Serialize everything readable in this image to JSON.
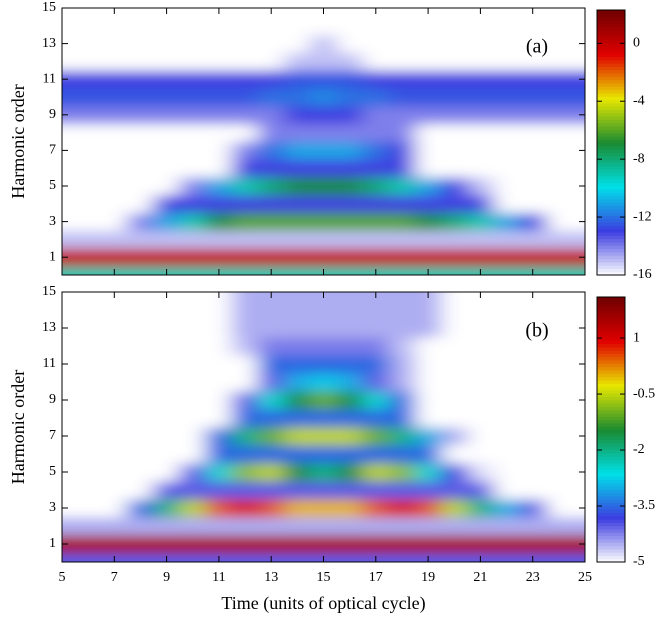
{
  "chart_data": [
    {
      "type": "heatmap",
      "annotation": "(a)",
      "y_label": "Harmonic order",
      "x": [
        5,
        6,
        7,
        8,
        9,
        10,
        11,
        12,
        13,
        14,
        15,
        16,
        17,
        18,
        19,
        20,
        21,
        22,
        23,
        24,
        25
      ],
      "y": [
        0,
        1,
        2,
        3,
        4,
        5,
        6,
        7,
        8,
        9,
        10,
        11,
        12,
        13,
        14,
        15
      ],
      "z": [
        [
          -9,
          -9,
          -9,
          -9,
          -9,
          -9,
          -9,
          -9,
          -9,
          -9,
          -9,
          -9,
          -9,
          -9,
          -9,
          -9,
          -9,
          -9,
          -9,
          -9,
          -9
        ],
        [
          0,
          0,
          0,
          0,
          0,
          0,
          0,
          0,
          0,
          0,
          0,
          0,
          0,
          0,
          0,
          0,
          0,
          0,
          0,
          0,
          0
        ],
        [
          -15,
          -15,
          -15,
          -15,
          -15,
          -15,
          -15,
          -15,
          -15,
          -15,
          -15,
          -15,
          -15,
          -15,
          -15,
          -15,
          -15,
          -15,
          -15,
          -15,
          -15
        ],
        [
          -16,
          -16,
          -16,
          -14,
          -11,
          -9,
          -7,
          -6,
          -6,
          -6,
          -6,
          -6,
          -6,
          -6,
          -7,
          -8,
          -9,
          -11,
          -13,
          -16,
          -16
        ],
        [
          -16,
          -16,
          -16,
          -16,
          -13,
          -13,
          -13,
          -13,
          -13,
          -13,
          -13,
          -13,
          -13,
          -13,
          -13,
          -13,
          -13,
          -16,
          -16,
          -16,
          -16
        ],
        [
          -16,
          -16,
          -16,
          -16,
          -16,
          -14,
          -11,
          -9,
          -8,
          -7,
          -7,
          -7,
          -8,
          -9,
          -11,
          -13,
          -15,
          -16,
          -16,
          -16,
          -16
        ],
        [
          -16,
          -16,
          -16,
          -16,
          -16,
          -16,
          -16,
          -13,
          -13,
          -13,
          -13,
          -13,
          -13,
          -13,
          -16,
          -16,
          -16,
          -16,
          -16,
          -16,
          -16
        ],
        [
          -16,
          -16,
          -16,
          -16,
          -16,
          -16,
          -16,
          -14,
          -12,
          -11,
          -11,
          -11,
          -12,
          -13,
          -16,
          -16,
          -16,
          -16,
          -16,
          -16,
          -16
        ],
        [
          -16,
          -16,
          -16,
          -16,
          -16,
          -16,
          -16,
          -16,
          -14,
          -14,
          -14,
          -14,
          -14,
          -14,
          -16,
          -16,
          -16,
          -16,
          -16,
          -16,
          -16
        ],
        [
          -14,
          -14,
          -14,
          -14,
          -14,
          -14,
          -14,
          -14,
          -14,
          -13,
          -13,
          -13,
          -14,
          -14,
          -14,
          -14,
          -14,
          -14,
          -14,
          -14,
          -14
        ],
        [
          -12.5,
          -12.5,
          -12.5,
          -12.5,
          -12.5,
          -12.5,
          -12.5,
          -12.5,
          -12,
          -12,
          -11.5,
          -12,
          -12,
          -12.5,
          -12.5,
          -12.5,
          -12.5,
          -12.5,
          -12.5,
          -12.5,
          -12.5
        ],
        [
          -13,
          -13,
          -13,
          -13,
          -13,
          -13,
          -13,
          -13,
          -13,
          -12.5,
          -12.5,
          -12.5,
          -13,
          -13,
          -13,
          -13,
          -13,
          -13,
          -13,
          -13,
          -13
        ],
        [
          -16,
          -16,
          -16,
          -16,
          -16,
          -16,
          -16,
          -16,
          -16,
          -15,
          -15,
          -15,
          -16,
          -16,
          -16,
          -16,
          -16,
          -16,
          -16,
          -16,
          -16
        ],
        [
          -16,
          -16,
          -16,
          -16,
          -16,
          -16,
          -16,
          -16,
          -16,
          -16,
          -15,
          -16,
          -16,
          -16,
          -16,
          -16,
          -16,
          -16,
          -16,
          -16,
          -16
        ],
        [
          -16,
          -16,
          -16,
          -16,
          -16,
          -16,
          -16,
          -16,
          -16,
          -16,
          -16,
          -16,
          -16,
          -16,
          -16,
          -16,
          -16,
          -16,
          -16,
          -16,
          -16
        ],
        [
          -16,
          -16,
          -16,
          -16,
          -16,
          -16,
          -16,
          -16,
          -16,
          -16,
          -16,
          -16,
          -16,
          -16,
          -16,
          -16,
          -16,
          -16,
          -16,
          -16,
          -16
        ]
      ],
      "xlim": [
        5,
        25
      ],
      "ylim": [
        0,
        15
      ],
      "yticks": [
        1,
        3,
        5,
        7,
        9,
        11,
        13,
        15
      ],
      "zlim": [
        -16,
        2.3
      ],
      "zticks": [
        0,
        -4,
        -8,
        -12,
        -16
      ],
      "colorscale": [
        "#ffffff",
        "#3c3ce0",
        "#00e0e8",
        "#1a8a30",
        "#e8e800",
        "#e00000",
        "#700000"
      ]
    },
    {
      "type": "heatmap",
      "annotation": "(b)",
      "y_label": "Harmonic order",
      "x_label": "Time (units of optical cycle)",
      "x": [
        5,
        6,
        7,
        8,
        9,
        10,
        11,
        12,
        13,
        14,
        15,
        16,
        17,
        18,
        19,
        20,
        21,
        22,
        23,
        24,
        25
      ],
      "y": [
        0,
        1,
        2,
        3,
        4,
        5,
        6,
        7,
        8,
        9,
        10,
        11,
        12,
        13,
        14,
        15
      ],
      "z": [
        [
          -4,
          -4,
          -4,
          -4,
          -4,
          -4,
          -4,
          -4,
          -4,
          -4,
          -4,
          -4,
          -4,
          -4,
          -4,
          -4,
          -4,
          -4,
          -4,
          -4,
          -4
        ],
        [
          1.5,
          1.5,
          1.5,
          1.5,
          1.5,
          1.5,
          1.5,
          1.5,
          1.5,
          1.5,
          1.5,
          1.5,
          1.5,
          1.5,
          1.5,
          1.5,
          1.5,
          1.5,
          1.5,
          1.5,
          1.5
        ],
        [
          -4.5,
          -4.5,
          -4.5,
          -4.5,
          -4.5,
          -4.5,
          -4.5,
          -4.5,
          -4.5,
          -4.5,
          -4.5,
          -4.5,
          -4.5,
          -4.5,
          -4.5,
          -4.5,
          -4.5,
          -4.5,
          -4.5,
          -4.5,
          -4.5
        ],
        [
          -5,
          -5,
          -5,
          -3.5,
          -2,
          -0.5,
          0.5,
          1,
          0.5,
          0,
          0,
          0,
          0.5,
          1,
          0.5,
          -0.5,
          -2,
          -3,
          -4,
          -5,
          -5
        ],
        [
          -5,
          -5,
          -5,
          -5,
          -4,
          -4,
          -4,
          -4,
          -4,
          -4,
          -4,
          -4,
          -4,
          -4,
          -4,
          -4,
          -4,
          -5,
          -5,
          -5,
          -5
        ],
        [
          -5,
          -5,
          -5,
          -5,
          -5,
          -4,
          -2.5,
          -0.8,
          -0.5,
          -1.5,
          -2,
          -1.5,
          -0.5,
          -0.8,
          -2.5,
          -3.8,
          -4.8,
          -5,
          -5,
          -5,
          -5
        ],
        [
          -5,
          -5,
          -5,
          -5,
          -5,
          -5,
          -3.5,
          -3.5,
          -3.5,
          -3.5,
          -3.5,
          -3.5,
          -3.5,
          -3.5,
          -3.5,
          -5,
          -5,
          -5,
          -5,
          -5,
          -5
        ],
        [
          -5,
          -5,
          -5,
          -5,
          -5,
          -5,
          -3.5,
          -2,
          -1,
          -0.5,
          -0.5,
          -0.5,
          -1,
          -2,
          -3,
          -4.5,
          -5,
          -5,
          -5,
          -5,
          -5
        ],
        [
          -5,
          -5,
          -5,
          -5,
          -5,
          -5,
          -5,
          -3.5,
          -3.5,
          -3.5,
          -3.5,
          -3.5,
          -3.5,
          -3.5,
          -5,
          -5,
          -5,
          -5,
          -5,
          -5,
          -5
        ],
        [
          -5,
          -5,
          -5,
          -5,
          -5,
          -5,
          -5,
          -4,
          -2.5,
          -1.5,
          -1,
          -1.5,
          -2.5,
          -3.5,
          -5,
          -5,
          -5,
          -5,
          -5,
          -5,
          -5
        ],
        [
          -5,
          -5,
          -5,
          -5,
          -5,
          -5,
          -5,
          -5,
          -4,
          -3,
          -2.8,
          -3,
          -4,
          -4.5,
          -5,
          -5,
          -5,
          -5,
          -5,
          -5,
          -5
        ],
        [
          -5,
          -5,
          -5,
          -5,
          -5,
          -5,
          -5,
          -5,
          -3.5,
          -3.5,
          -3.5,
          -3.5,
          -3.5,
          -4.5,
          -5,
          -5,
          -5,
          -5,
          -5,
          -5,
          -5
        ],
        [
          -5,
          -5,
          -5,
          -5,
          -5,
          -5,
          -5,
          -4.6,
          -4.2,
          -4.2,
          -4.2,
          -4.2,
          -4.2,
          -4.6,
          -5,
          -5,
          -5,
          -5,
          -5,
          -5,
          -5
        ],
        [
          -5,
          -5,
          -5,
          -5,
          -5,
          -5,
          -5,
          -4.5,
          -4.5,
          -4.5,
          -4.5,
          -4.5,
          -4.5,
          -4.5,
          -4.5,
          -5,
          -5,
          -5,
          -5,
          -5,
          -5
        ],
        [
          -5,
          -5,
          -5,
          -5,
          -5,
          -5,
          -5,
          -4.5,
          -4.5,
          -4.5,
          -4.5,
          -4.5,
          -4.5,
          -4.5,
          -4.5,
          -5,
          -5,
          -5,
          -5,
          -5,
          -5
        ],
        [
          -5,
          -5,
          -5,
          -5,
          -5,
          -5,
          -5,
          -4.5,
          -4.5,
          -4.5,
          -4.5,
          -4.5,
          -4.5,
          -4.5,
          -4.5,
          -5,
          -5,
          -5,
          -5,
          -5,
          -5
        ]
      ],
      "xlim": [
        5,
        25
      ],
      "ylim": [
        0,
        15
      ],
      "xticks": [
        5,
        7,
        9,
        11,
        13,
        15,
        17,
        19,
        21,
        23,
        25
      ],
      "yticks": [
        1,
        3,
        5,
        7,
        9,
        11,
        13,
        15
      ],
      "zlim": [
        -5,
        2.1
      ],
      "zticks": [
        1,
        -0.5,
        -2,
        -3.5,
        -5
      ],
      "colorscale": [
        "#ffffff",
        "#3c3ce0",
        "#00e0e8",
        "#1a8a30",
        "#e8e800",
        "#e00000",
        "#700000"
      ]
    }
  ]
}
